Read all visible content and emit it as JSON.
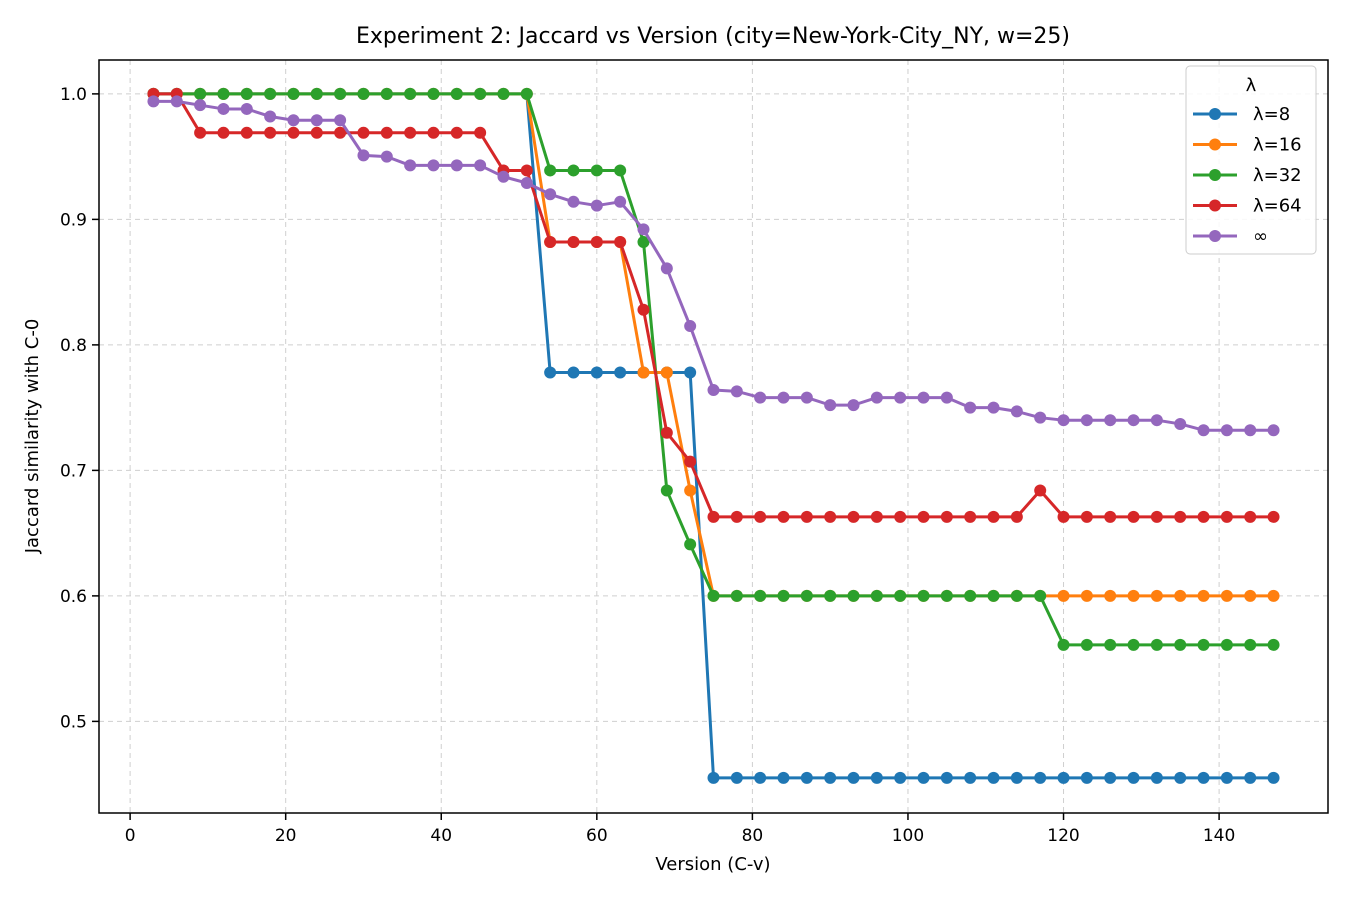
{
  "chart_data": {
    "type": "line",
    "title": "Experiment 2: Jaccard vs Version  (city=New-York-City_NY, w=25)",
    "xlabel": "Version (C-v)",
    "ylabel": "Jaccard similarity with C-0",
    "xlim": [
      -4,
      154
    ],
    "ylim": [
      0.427,
      1.027
    ],
    "xticks": [
      0,
      20,
      40,
      60,
      80,
      100,
      120,
      140
    ],
    "yticks": [
      0.5,
      0.6,
      0.7,
      0.8,
      0.9,
      1.0
    ],
    "ytick_labels": [
      "0.5",
      "0.6",
      "0.7",
      "0.8",
      "0.9",
      "1.0"
    ],
    "grid": true,
    "legend_title": "λ",
    "legend_position": "top-right",
    "x": [
      3,
      6,
      9,
      12,
      15,
      18,
      21,
      24,
      27,
      30,
      33,
      36,
      39,
      42,
      45,
      48,
      51,
      54,
      57,
      60,
      63,
      66,
      69,
      72,
      75,
      78,
      81,
      84,
      87,
      90,
      93,
      96,
      99,
      102,
      105,
      108,
      111,
      114,
      117,
      120,
      123,
      126,
      129,
      132,
      135,
      138,
      141,
      144,
      147
    ],
    "series": [
      {
        "name": "λ=8",
        "color": "#1f77b4",
        "values": [
          1.0,
          1.0,
          1.0,
          1.0,
          1.0,
          1.0,
          1.0,
          1.0,
          1.0,
          1.0,
          1.0,
          1.0,
          1.0,
          1.0,
          1.0,
          1.0,
          1.0,
          0.778,
          0.778,
          0.778,
          0.778,
          0.778,
          0.778,
          0.778,
          0.455,
          0.455,
          0.455,
          0.455,
          0.455,
          0.455,
          0.455,
          0.455,
          0.455,
          0.455,
          0.455,
          0.455,
          0.455,
          0.455,
          0.455,
          0.455,
          0.455,
          0.455,
          0.455,
          0.455,
          0.455,
          0.455,
          0.455,
          0.455,
          0.455
        ]
      },
      {
        "name": "λ=16",
        "color": "#ff7f0e",
        "values": [
          1.0,
          1.0,
          1.0,
          1.0,
          1.0,
          1.0,
          1.0,
          1.0,
          1.0,
          1.0,
          1.0,
          1.0,
          1.0,
          1.0,
          1.0,
          1.0,
          1.0,
          0.882,
          0.882,
          0.882,
          0.882,
          0.778,
          0.778,
          0.684,
          0.6,
          0.6,
          0.6,
          0.6,
          0.6,
          0.6,
          0.6,
          0.6,
          0.6,
          0.6,
          0.6,
          0.6,
          0.6,
          0.6,
          0.6,
          0.6,
          0.6,
          0.6,
          0.6,
          0.6,
          0.6,
          0.6,
          0.6,
          0.6,
          0.6
        ]
      },
      {
        "name": "λ=32",
        "color": "#2ca02c",
        "values": [
          1.0,
          1.0,
          1.0,
          1.0,
          1.0,
          1.0,
          1.0,
          1.0,
          1.0,
          1.0,
          1.0,
          1.0,
          1.0,
          1.0,
          1.0,
          1.0,
          1.0,
          0.939,
          0.939,
          0.939,
          0.939,
          0.882,
          0.684,
          0.641,
          0.6,
          0.6,
          0.6,
          0.6,
          0.6,
          0.6,
          0.6,
          0.6,
          0.6,
          0.6,
          0.6,
          0.6,
          0.6,
          0.6,
          0.6,
          0.561,
          0.561,
          0.561,
          0.561,
          0.561,
          0.561,
          0.561,
          0.561,
          0.561,
          0.561
        ]
      },
      {
        "name": "λ=64",
        "color": "#d62728",
        "values": [
          1.0,
          1.0,
          0.969,
          0.969,
          0.969,
          0.969,
          0.969,
          0.969,
          0.969,
          0.969,
          0.969,
          0.969,
          0.969,
          0.969,
          0.969,
          0.939,
          0.939,
          0.882,
          0.882,
          0.882,
          0.882,
          0.828,
          0.73,
          0.707,
          0.663,
          0.663,
          0.663,
          0.663,
          0.663,
          0.663,
          0.663,
          0.663,
          0.663,
          0.663,
          0.663,
          0.663,
          0.663,
          0.663,
          0.684,
          0.663,
          0.663,
          0.663,
          0.663,
          0.663,
          0.663,
          0.663,
          0.663,
          0.663,
          0.663
        ]
      },
      {
        "name": "∞",
        "color": "#9467bd",
        "values": [
          0.994,
          0.994,
          0.991,
          0.988,
          0.988,
          0.982,
          0.979,
          0.979,
          0.979,
          0.951,
          0.95,
          0.943,
          0.943,
          0.943,
          0.943,
          0.934,
          0.929,
          0.92,
          0.914,
          0.911,
          0.914,
          0.892,
          0.861,
          0.815,
          0.764,
          0.763,
          0.758,
          0.758,
          0.758,
          0.752,
          0.752,
          0.758,
          0.758,
          0.758,
          0.758,
          0.75,
          0.75,
          0.747,
          0.742,
          0.74,
          0.74,
          0.74,
          0.74,
          0.74,
          0.737,
          0.732,
          0.732,
          0.732,
          0.732
        ]
      }
    ]
  }
}
